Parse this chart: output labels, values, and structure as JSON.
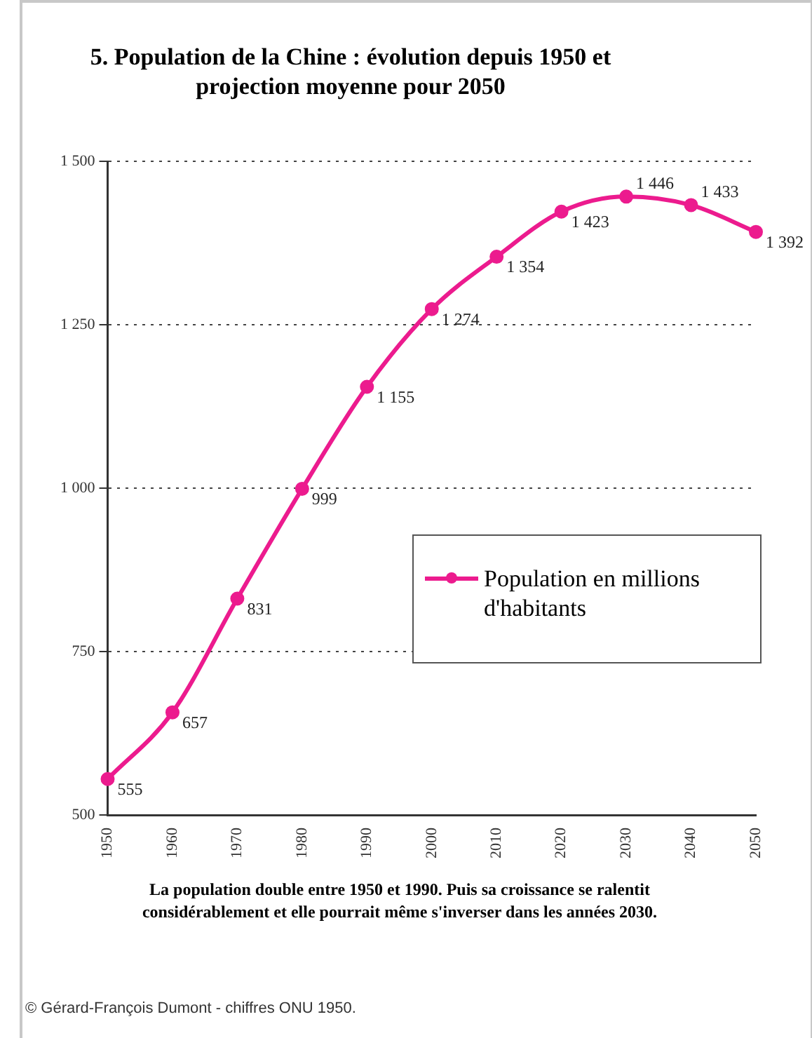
{
  "chart_data": {
    "type": "line",
    "title": "5. Population de la Chine : évolution depuis 1950 et projection moyenne pour 2050",
    "categories": [
      "1950",
      "1960",
      "1970",
      "1980",
      "1990",
      "2000",
      "2010",
      "2020",
      "2030",
      "2040",
      "2050"
    ],
    "series": [
      {
        "name": "Population en millions d'habitants",
        "color": "#ec1b8e",
        "values": [
          555,
          657,
          831,
          999,
          1155,
          1274,
          1354,
          1423,
          1446,
          1433,
          1392
        ],
        "value_labels": [
          "555",
          "657",
          "831",
          "999",
          "1 155",
          "1 274",
          "1 354",
          "1 423",
          "1 446",
          "1 433",
          "1 392"
        ]
      }
    ],
    "ylim": [
      500,
      1500
    ],
    "yticks": [
      {
        "value": 500,
        "label": "500"
      },
      {
        "value": 750,
        "label": "750"
      },
      {
        "value": 1000,
        "label": "1 000"
      },
      {
        "value": 1250,
        "label": "1 250"
      },
      {
        "value": 1500,
        "label": "1 500"
      }
    ],
    "grid": "y",
    "legend": "right",
    "marker": "circle",
    "line_style": "solid",
    "annotations": [
      "La population double entre 1950 et 1990. Puis sa croissance se ralentit considérablement et elle pourrait même s'inverser dans les années 2030.",
      "© Gérard-François Dumont - chiffres ONU 1950."
    ]
  }
}
